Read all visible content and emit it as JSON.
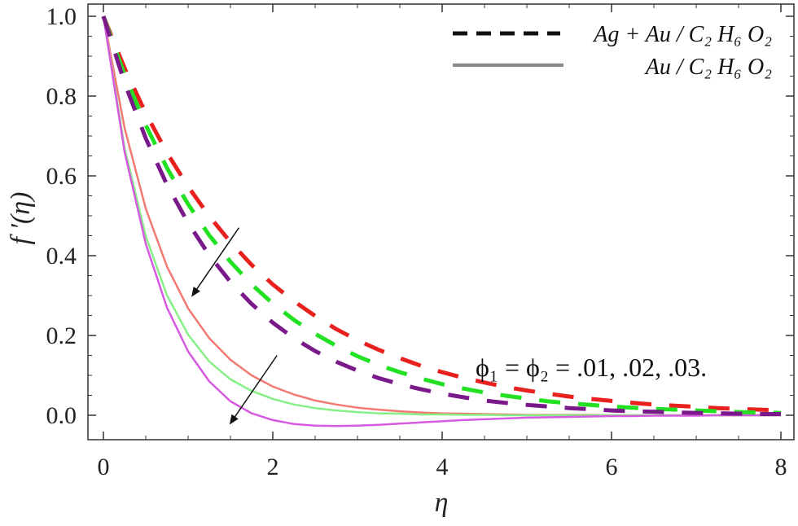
{
  "chart_data": {
    "type": "line",
    "xlabel": "η",
    "ylabel": "f ′(η)",
    "xlim": [
      0,
      8
    ],
    "ylim": [
      -0.035,
      1.02
    ],
    "xticks": [
      "0",
      "2",
      "4",
      "6",
      "8"
    ],
    "yticks": [
      "0.0",
      "0.2",
      "0.4",
      "0.6",
      "0.8",
      "1.0"
    ],
    "grid": false,
    "legend_position": "top-right",
    "legend": [
      {
        "label": "Ag + Au / C₂ H₆ O₂",
        "style": "dashed",
        "color": "#111111"
      },
      {
        "label": "Au / C₂ H₆ O₂",
        "style": "solid",
        "color": "#888888"
      }
    ],
    "annotation": "ϕ₁ = ϕ₂ = .01, .02, .03.",
    "x": [
      0,
      0.25,
      0.5,
      0.75,
      1,
      1.25,
      1.5,
      1.75,
      2,
      2.25,
      2.5,
      2.75,
      3,
      3.25,
      3.5,
      3.75,
      4,
      4.25,
      4.5,
      4.75,
      5,
      5.25,
      5.5,
      5.75,
      6,
      6.25,
      6.5,
      6.75,
      7,
      7.25,
      7.5,
      7.75,
      8
    ],
    "series": [
      {
        "group": "Ag + Au / C₂ H₆ O₂",
        "phi": ".01",
        "style": "dashed",
        "color": "#e8201e",
        "values": [
          1.0,
          0.87,
          0.757,
          0.658,
          0.573,
          0.499,
          0.434,
          0.377,
          0.328,
          0.286,
          0.249,
          0.216,
          0.188,
          0.164,
          0.143,
          0.124,
          0.108,
          0.094,
          0.082,
          0.071,
          0.062,
          0.054,
          0.047,
          0.041,
          0.036,
          0.031,
          0.027,
          0.024,
          0.021,
          0.018,
          0.016,
          0.014,
          0.012
        ]
      },
      {
        "group": "Ag + Au / C₂ H₆ O₂",
        "phi": ".02",
        "style": "dashed",
        "color": "#22e022",
        "values": [
          1.0,
          0.853,
          0.727,
          0.62,
          0.529,
          0.451,
          0.385,
          0.328,
          0.28,
          0.239,
          0.204,
          0.174,
          0.148,
          0.126,
          0.108,
          0.092,
          0.078,
          0.067,
          0.057,
          0.049,
          0.042,
          0.035,
          0.03,
          0.026,
          0.022,
          0.019,
          0.016,
          0.014,
          0.012,
          0.01,
          0.008,
          0.007,
          0.006
        ]
      },
      {
        "group": "Ag + Au / C₂ H₆ O₂",
        "phi": ".03",
        "style": "dashed",
        "color": "#7a1a8a",
        "values": [
          1.0,
          0.833,
          0.694,
          0.578,
          0.482,
          0.401,
          0.334,
          0.279,
          0.232,
          0.193,
          0.161,
          0.134,
          0.112,
          0.093,
          0.078,
          0.065,
          0.054,
          0.045,
          0.037,
          0.031,
          0.026,
          0.022,
          0.018,
          0.015,
          0.012,
          0.01,
          0.009,
          0.007,
          0.006,
          0.005,
          0.004,
          0.003,
          0.003
        ]
      },
      {
        "group": "Au / C₂ H₆ O₂",
        "phi": ".01",
        "style": "solid",
        "color": "#f27a72",
        "values": [
          1.0,
          0.72,
          0.518,
          0.373,
          0.268,
          0.193,
          0.139,
          0.1,
          0.072,
          0.052,
          0.037,
          0.027,
          0.019,
          0.014,
          0.01,
          0.007,
          0.005,
          0.004,
          0.003,
          0.002,
          0.001,
          0.001,
          0.001,
          0.001,
          0.0,
          0.0,
          0.0,
          0.0,
          0.0,
          0.0,
          0.0,
          0.0,
          0.0
        ]
      },
      {
        "group": "Au / C₂ H₆ O₂",
        "phi": ".02",
        "style": "solid",
        "color": "#86f086",
        "values": [
          1.0,
          0.67,
          0.449,
          0.301,
          0.202,
          0.135,
          0.09,
          0.061,
          0.041,
          0.027,
          0.018,
          0.012,
          0.008,
          0.005,
          0.004,
          0.002,
          0.002,
          0.001,
          0.001,
          0.0,
          0.0,
          0.0,
          0.0,
          0.0,
          0.0,
          0.0,
          0.0,
          0.0,
          0.0,
          0.0,
          0.0,
          0.0,
          0.0
        ]
      },
      {
        "group": "Au / C₂ H₆ O₂",
        "phi": ".03",
        "style": "solid",
        "color": "#d65ae0",
        "values": [
          1.0,
          0.66,
          0.43,
          0.27,
          0.16,
          0.085,
          0.035,
          0.005,
          -0.012,
          -0.022,
          -0.026,
          -0.027,
          -0.026,
          -0.024,
          -0.021,
          -0.018,
          -0.015,
          -0.012,
          -0.01,
          -0.008,
          -0.006,
          -0.005,
          -0.004,
          -0.003,
          -0.002,
          -0.002,
          -0.001,
          -0.001,
          -0.001,
          0.0,
          0.0,
          0.0,
          0.0
        ]
      }
    ],
    "arrows": [
      {
        "from": [
          1.6,
          0.47
        ],
        "to": [
          1.05,
          0.3
        ]
      },
      {
        "from": [
          2.05,
          0.15
        ],
        "to": [
          1.5,
          -0.02
        ]
      }
    ]
  }
}
